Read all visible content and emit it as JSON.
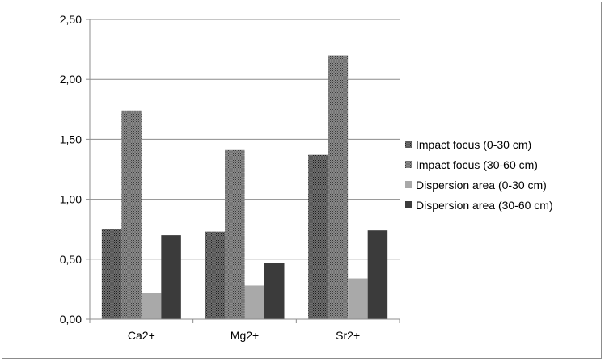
{
  "chart_data": {
    "type": "bar",
    "categories": [
      "Ca2+",
      "Mg2+",
      "Sr2+"
    ],
    "series": [
      {
        "name": "Impact focus (0-30 cm)",
        "values": [
          0.75,
          0.73,
          1.37
        ],
        "color": "#3a3a3a",
        "pattern": "fine-dots-dark"
      },
      {
        "name": "Impact focus (30-60  cm)",
        "values": [
          1.74,
          1.41,
          2.2
        ],
        "color": "#5a5a5a",
        "pattern": "fine-dots-medium"
      },
      {
        "name": "Dispersion area (0-30  cm)",
        "values": [
          0.22,
          0.28,
          0.34
        ],
        "color": "#a9a9a9",
        "pattern": "solid"
      },
      {
        "name": "Dispersion area (30-60  cm)",
        "values": [
          0.7,
          0.47,
          0.74
        ],
        "color": "#3b3b3b",
        "pattern": "solid"
      }
    ],
    "ylim": [
      0,
      2.5
    ],
    "yticks": [
      "0,00",
      "0,50",
      "1,00",
      "1,50",
      "2,00",
      "2,50"
    ],
    "ytick_values": [
      0,
      0.5,
      1.0,
      1.5,
      2.0,
      2.5
    ],
    "grid": true,
    "legend_position": "right",
    "title": "",
    "xlabel": "",
    "ylabel": ""
  }
}
